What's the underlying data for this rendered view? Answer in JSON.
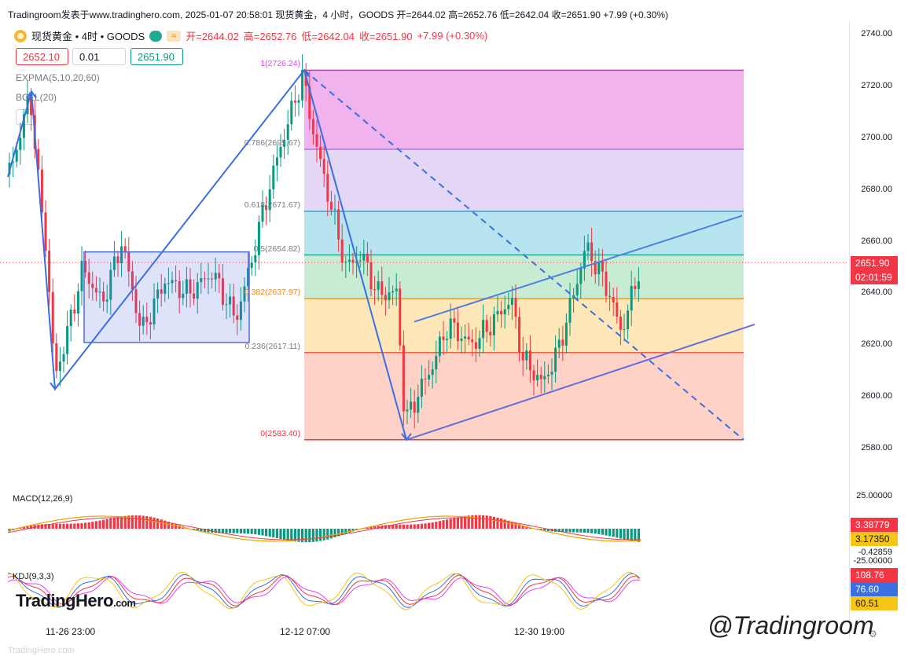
{
  "header": {
    "top_line": "Tradingroom发表于www.tradinghero.com, 2025-01-07 20:58:01 现货黄金，4 小时，GOODS 开=2644.02 高=2652.76 低=2642.04 收=2651.90 +7.99 (+0.30%)",
    "symbol": "现货黄金 • 4时 • GOODS",
    "open": "开=2644.02",
    "high": "高=2652.76",
    "low": "低=2642.04",
    "close": "收=2651.90",
    "change": "+7.99 (+0.30%)",
    "sell_price": "2652.10",
    "quantity": "0.01",
    "buy_price": "2651.90",
    "indicator1": "EXPMA(5,10,20,60)",
    "indicator2": "BOLL(20)"
  },
  "price_axis": {
    "labels": [
      "2740.00",
      "2720.00",
      "2700.00",
      "2680.00",
      "2660.00",
      "2640.00",
      "2620.00",
      "2600.00",
      "2580.00"
    ],
    "last_price": "2651.90",
    "countdown": "02:01:59"
  },
  "fib_labels": [
    {
      "text": "1(2726.24)",
      "color": "#e040fb"
    },
    {
      "text": "0.786(2695.67)",
      "color": "#787b86"
    },
    {
      "text": "0.618(2671.67)",
      "color": "#787b86"
    },
    {
      "text": "0.5(2654.82)",
      "color": "#787b86"
    },
    {
      "text": "0.382(2637.97)",
      "color": "#f0891a"
    },
    {
      "text": "0.236(2617.11)",
      "color": "#787b86"
    },
    {
      "text": "0(2583.40)",
      "color": "#f23645"
    }
  ],
  "macd": {
    "title": "MACD(12,26,9)",
    "axis_top": "25.00000",
    "axis_bottom": "-25.00000",
    "v1": "3.38779",
    "v2": "3.17350",
    "v3": "-0.42859"
  },
  "kdj": {
    "title": "KDJ(9,3,3)",
    "v1": "108.76",
    "v2": "76.60",
    "v3": "60.51"
  },
  "time_axis": [
    "11-26 23:00",
    "12-12 07:00",
    "12-30 19:00"
  ],
  "branding": {
    "logo": "TradingHero",
    "logo_suffix": ".com",
    "watermark": "@Tradingroom",
    "footer": "TradingHero.com"
  },
  "colors": {
    "up": "#089981",
    "down": "#f23645",
    "line": "#3a6fe0"
  },
  "chart_data": {
    "type": "candlestick",
    "title": "现货黄金 • 4时 • GOODS",
    "y_range": [
      2575,
      2745
    ],
    "fib_levels": [
      {
        "ratio": 1,
        "price": 2726.24
      },
      {
        "ratio": 0.786,
        "price": 2695.67
      },
      {
        "ratio": 0.618,
        "price": 2671.67
      },
      {
        "ratio": 0.5,
        "price": 2654.82
      },
      {
        "ratio": 0.382,
        "price": 2637.97
      },
      {
        "ratio": 0.236,
        "price": 2617.11
      },
      {
        "ratio": 0,
        "price": 2583.4
      }
    ],
    "last_close": 2651.9,
    "ohlc_last": {
      "open": 2644.02,
      "high": 2652.76,
      "low": 2642.04,
      "close": 2651.9
    }
  }
}
